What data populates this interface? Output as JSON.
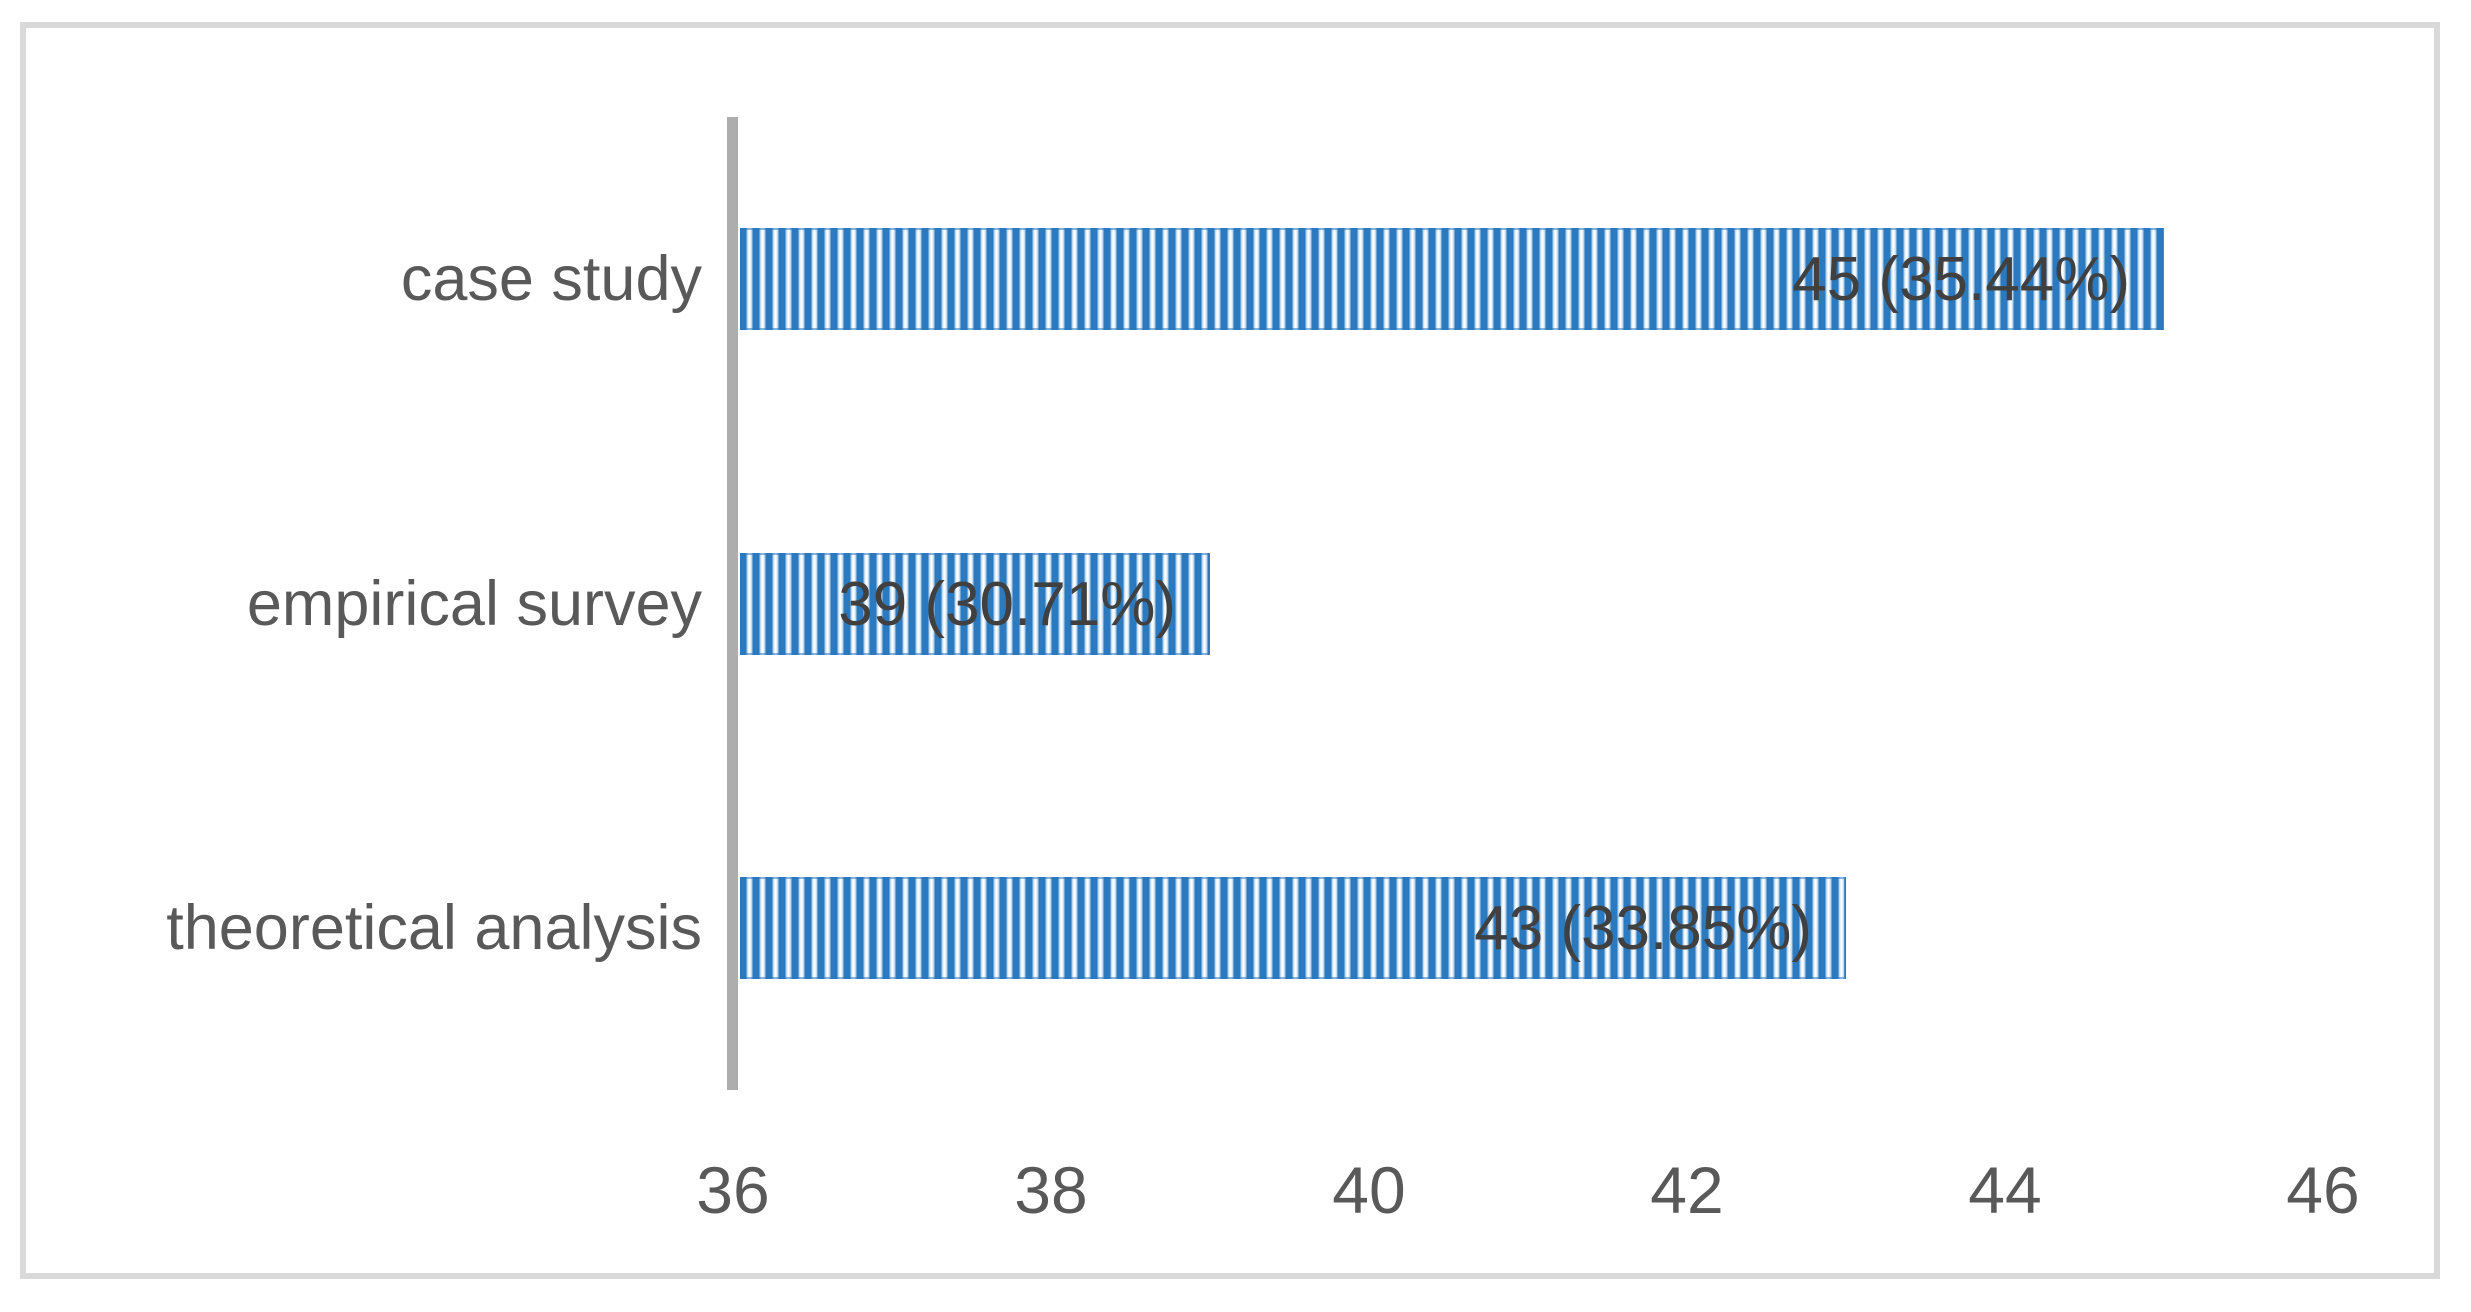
{
  "chart_data": {
    "type": "bar",
    "orientation": "horizontal",
    "title": "",
    "xlabel": "",
    "ylabel": "",
    "categories": [
      "case study",
      "empirical survey",
      "theoretical analysis"
    ],
    "values": [
      45,
      39,
      43
    ],
    "data_labels": [
      "45 (35.44%)",
      "39 (30.71%)",
      "43 (33.85%)"
    ],
    "xlim": [
      36,
      46
    ],
    "xticks": [
      36,
      38,
      40,
      42,
      44,
      46
    ],
    "grid": false,
    "legend_position": "none",
    "bar_fill_pattern": "vertical-stripes",
    "bar_color": "#2b79bf",
    "bar_stripe_light_color": "#ffffff",
    "axis_line_color": "#adadad",
    "category_label_color": "#595959",
    "tick_label_color": "#595959",
    "data_label_color": "#404040",
    "frame_border_color": "#d9d9d9",
    "background_color": "#ffffff"
  }
}
